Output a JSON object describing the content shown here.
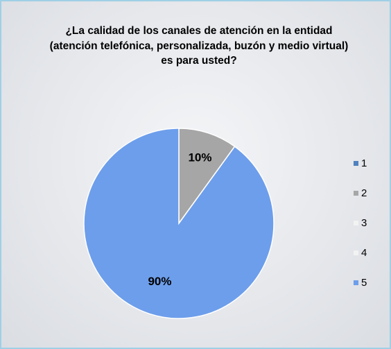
{
  "chart_data": {
    "type": "pie",
    "title": "¿La calidad de los canales de atención en la entidad (atención telefónica, personalizada, buzón y medio virtual) es para usted?",
    "categories": [
      "1",
      "2",
      "3",
      "4",
      "5"
    ],
    "values": [
      0,
      10,
      0,
      0,
      90
    ],
    "value_labels": [
      null,
      "10%",
      null,
      null,
      "90%"
    ],
    "colors": [
      "#4f81bd",
      "#a6a6a6",
      "#f2f2f2",
      "#f2f2f2",
      "#6d9eeb"
    ],
    "legend": "right"
  }
}
